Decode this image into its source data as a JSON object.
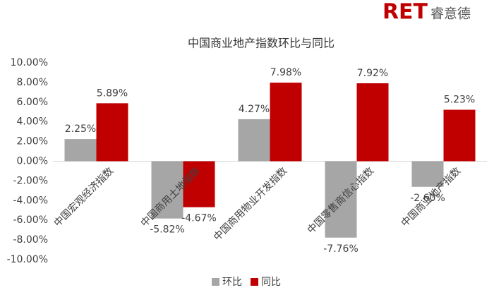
{
  "logo": {
    "brand": "RET",
    "name": "睿意德"
  },
  "chart_data": {
    "type": "bar",
    "title": "中国商业地产指数环比与同比",
    "categories": [
      "中国宏观经济指数",
      "中国商用土地指数",
      "中国商用物业开发指数",
      "中国零售商信心指数",
      "中国商业地产指数"
    ],
    "series": [
      {
        "name": "环比",
        "color": "#a6a6a6",
        "values": [
          2.25,
          -5.82,
          4.27,
          -7.76,
          -2.6
        ],
        "value_labels": [
          "2.25%",
          "-5.82%",
          "4.27%",
          "-7.76%",
          "-2.60%"
        ]
      },
      {
        "name": "同比",
        "color": "#c00000",
        "values": [
          5.89,
          -4.67,
          7.98,
          7.92,
          5.23
        ],
        "value_labels": [
          "5.89%",
          "-4.67%",
          "7.98%",
          "7.92%",
          "5.23%"
        ]
      }
    ],
    "ylim": [
      -10,
      10
    ],
    "yticks": [
      {
        "value": -10,
        "label": "-10.00%"
      },
      {
        "value": -8,
        "label": "-8.00%"
      },
      {
        "value": -6,
        "label": "-6.00%"
      },
      {
        "value": -4,
        "label": "-4.00%"
      },
      {
        "value": -2,
        "label": "-2.00%"
      },
      {
        "value": 0,
        "label": "0.00%"
      },
      {
        "value": 2,
        "label": "2.00%"
      },
      {
        "value": 4,
        "label": "4.00%"
      },
      {
        "value": 6,
        "label": "6.00%"
      },
      {
        "value": 8,
        "label": "8.00%"
      },
      {
        "value": 10,
        "label": "10.00%"
      }
    ],
    "legend": "bottom"
  }
}
